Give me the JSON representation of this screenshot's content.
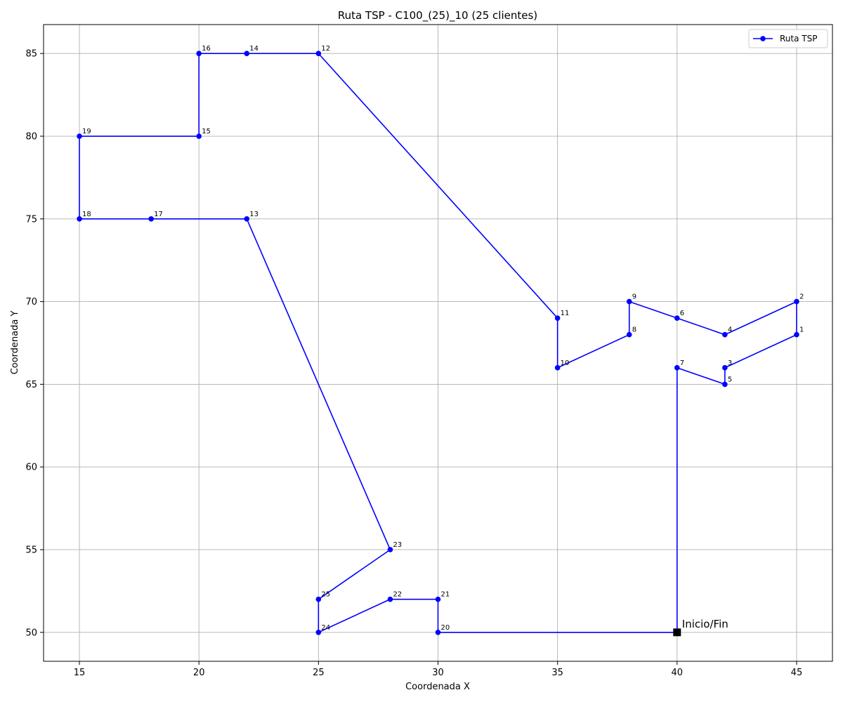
{
  "chart_data": {
    "type": "line",
    "title": "Ruta TSP - C100_(25)_10 (25 clientes)",
    "xlabel": "Coordenada X",
    "ylabel": "Coordenada Y",
    "xlim": [
      13.5,
      46.5
    ],
    "ylim": [
      48.25,
      86.75
    ],
    "xticks": [
      15,
      20,
      25,
      30,
      35,
      40,
      45
    ],
    "yticks": [
      50,
      55,
      60,
      65,
      70,
      75,
      80,
      85
    ],
    "grid": true,
    "legend": {
      "placement": "top-right",
      "entries": [
        "Ruta TSP"
      ]
    },
    "series": [
      {
        "name": "Ruta TSP",
        "color": "#0000ff",
        "route": [
          {
            "label": "",
            "x": 40,
            "y": 50
          },
          {
            "label": "7",
            "x": 40,
            "y": 66
          },
          {
            "label": "5",
            "x": 42,
            "y": 65
          },
          {
            "label": "3",
            "x": 42,
            "y": 66
          },
          {
            "label": "1",
            "x": 45,
            "y": 68
          },
          {
            "label": "2",
            "x": 45,
            "y": 70
          },
          {
            "label": "4",
            "x": 42,
            "y": 68
          },
          {
            "label": "6",
            "x": 40,
            "y": 69
          },
          {
            "label": "9",
            "x": 38,
            "y": 70
          },
          {
            "label": "8",
            "x": 38,
            "y": 68
          },
          {
            "label": "10",
            "x": 35,
            "y": 66
          },
          {
            "label": "11",
            "x": 35,
            "y": 69
          },
          {
            "label": "12",
            "x": 25,
            "y": 85
          },
          {
            "label": "14",
            "x": 22,
            "y": 85
          },
          {
            "label": "16",
            "x": 20,
            "y": 85
          },
          {
            "label": "15",
            "x": 20,
            "y": 80
          },
          {
            "label": "19",
            "x": 15,
            "y": 80
          },
          {
            "label": "18",
            "x": 15,
            "y": 75
          },
          {
            "label": "17",
            "x": 18,
            "y": 75
          },
          {
            "label": "13",
            "x": 22,
            "y": 75
          },
          {
            "label": "23",
            "x": 28,
            "y": 55
          },
          {
            "label": "25",
            "x": 25,
            "y": 52
          },
          {
            "label": "24",
            "x": 25,
            "y": 50
          },
          {
            "label": "22",
            "x": 28,
            "y": 52
          },
          {
            "label": "21",
            "x": 30,
            "y": 52
          },
          {
            "label": "20",
            "x": 30,
            "y": 50
          },
          {
            "label": "",
            "x": 40,
            "y": 50
          }
        ]
      }
    ],
    "depot": {
      "label": "Inicio/Fin",
      "x": 40,
      "y": 50,
      "color": "#000000"
    }
  }
}
